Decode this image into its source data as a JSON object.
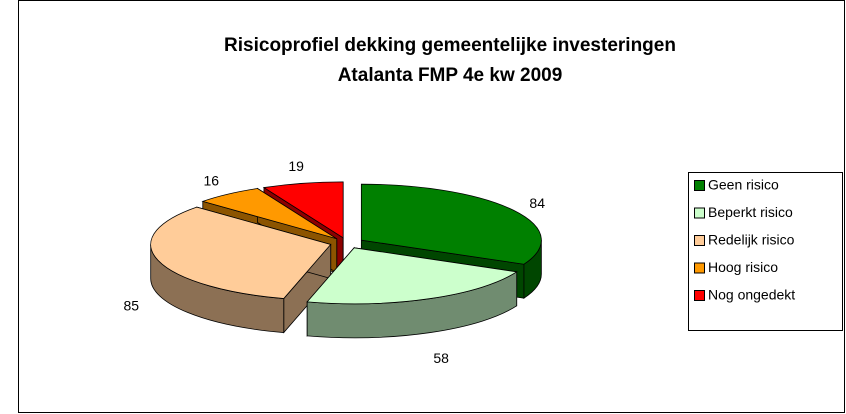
{
  "chart_data": {
    "type": "pie3d",
    "title": [
      "Risicoprofiel dekking gemeentelijke investeringen",
      "Atalanta  FMP 4e kw 2009"
    ],
    "categories": [
      "Geen risico",
      "Beperkt risico",
      "Redelijk risico",
      "Hoog risico",
      "Nog ongedekt"
    ],
    "values": [
      84,
      58,
      85,
      16,
      19
    ],
    "colors": [
      "#008000",
      "#ccffcc",
      "#ffcc99",
      "#ff9900",
      "#ff0000"
    ],
    "legend": "right"
  }
}
